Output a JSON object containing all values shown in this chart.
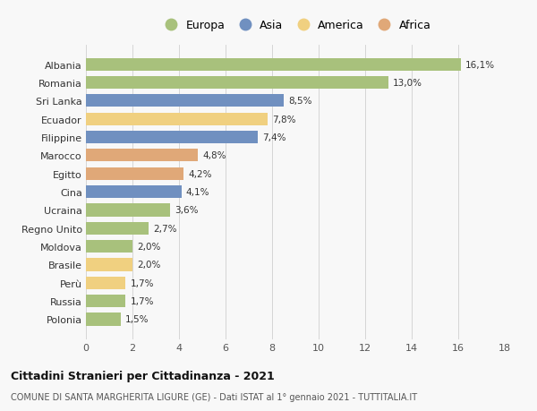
{
  "countries": [
    "Albania",
    "Romania",
    "Sri Lanka",
    "Ecuador",
    "Filippine",
    "Marocco",
    "Egitto",
    "Cina",
    "Ucraina",
    "Regno Unito",
    "Moldova",
    "Brasile",
    "Perù",
    "Russia",
    "Polonia"
  ],
  "values": [
    16.1,
    13.0,
    8.5,
    7.8,
    7.4,
    4.8,
    4.2,
    4.1,
    3.6,
    2.7,
    2.0,
    2.0,
    1.7,
    1.7,
    1.5
  ],
  "labels": [
    "16,1%",
    "13,0%",
    "8,5%",
    "7,8%",
    "7,4%",
    "4,8%",
    "4,2%",
    "4,1%",
    "3,6%",
    "2,7%",
    "2,0%",
    "2,0%",
    "1,7%",
    "1,7%",
    "1,5%"
  ],
  "continents": [
    "Europa",
    "Europa",
    "Asia",
    "America",
    "Asia",
    "Africa",
    "Africa",
    "Asia",
    "Europa",
    "Europa",
    "Europa",
    "America",
    "America",
    "Europa",
    "Europa"
  ],
  "colors": {
    "Europa": "#a8c17c",
    "Asia": "#7090c0",
    "America": "#f0d080",
    "Africa": "#e0a878"
  },
  "xlim": [
    0,
    18
  ],
  "xticks": [
    0,
    2,
    4,
    6,
    8,
    10,
    12,
    14,
    16,
    18
  ],
  "title": "Cittadini Stranieri per Cittadinanza - 2021",
  "subtitle": "COMUNE DI SANTA MARGHERITA LIGURE (GE) - Dati ISTAT al 1° gennaio 2021 - TUTTITALIA.IT",
  "background_color": "#f8f8f8",
  "grid_color": "#d0d0d0",
  "legend_order": [
    "Europa",
    "Asia",
    "America",
    "Africa"
  ]
}
